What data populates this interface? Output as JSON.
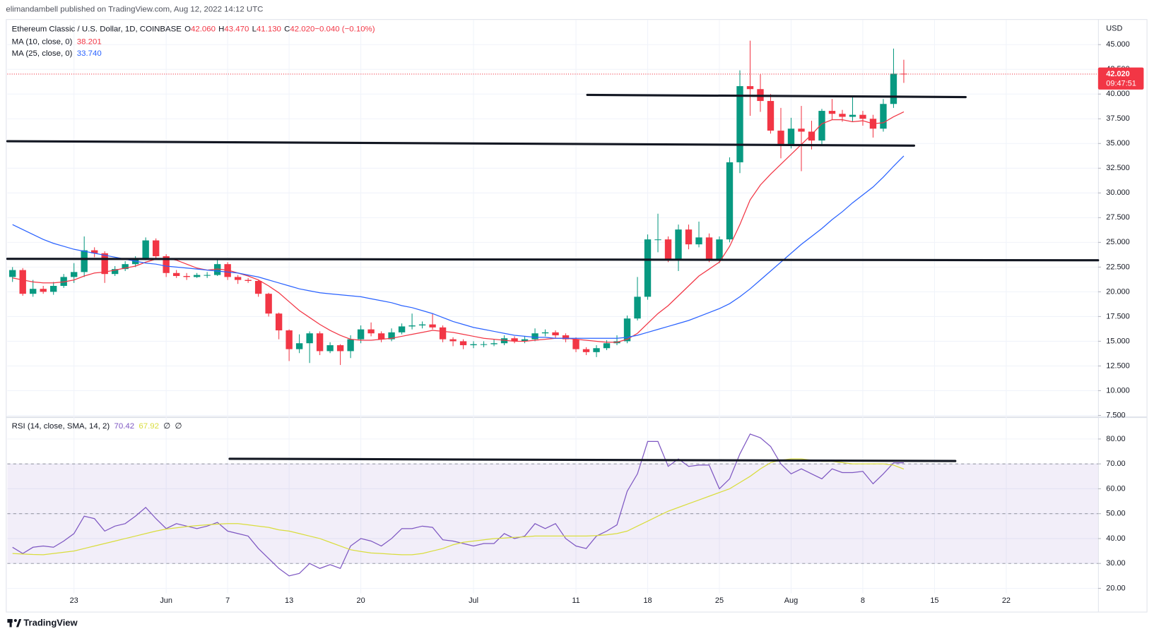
{
  "header": "elimandambell published on TradingView.com, Aug 12, 2022 14:12 UTC",
  "footer": "TradingView",
  "chart_data": [
    {
      "type": "candlestick",
      "title": "Ethereum Classic / U.S. Dollar, 1D, COINBASE",
      "ohlc_labels": [
        {
          "label": "O",
          "value": "42.060"
        },
        {
          "label": "H",
          "value": "43.470"
        },
        {
          "label": "L",
          "value": "41.130"
        },
        {
          "label": "C",
          "value": "42.020"
        },
        {
          "label": "",
          "value": "−0.040 (−0.10%)"
        }
      ],
      "currency": "USD",
      "last_price_label": "42.020",
      "countdown": "09:47:51",
      "up_color": "#089981",
      "down_color": "#f23645",
      "grid": true,
      "categories": [
        null,
        null,
        null,
        null,
        null,
        null,
        "23",
        null,
        null,
        null,
        null,
        null,
        null,
        null,
        null,
        "Jun",
        null,
        null,
        null,
        null,
        null,
        "7",
        null,
        null,
        null,
        null,
        null,
        "13",
        null,
        null,
        null,
        null,
        null,
        null,
        "20",
        null,
        null,
        null,
        null,
        null,
        null,
        null,
        null,
        null,
        null,
        "Jul",
        null,
        null,
        null,
        null,
        null,
        null,
        null,
        null,
        null,
        "11",
        null,
        null,
        null,
        null,
        null,
        null,
        "18",
        null,
        null,
        null,
        null,
        null,
        null,
        "25",
        null,
        null,
        null,
        null,
        null,
        null,
        "Aug",
        null,
        null,
        null,
        null,
        null,
        null,
        "8",
        null,
        null,
        null,
        null,
        null,
        null,
        "15",
        null,
        null,
        null,
        null,
        null,
        null,
        "22",
        null,
        null
      ],
      "open": [
        21.5,
        22.2,
        19.8,
        20.3,
        20.0,
        20.6,
        21.5,
        22.0,
        24.2,
        23.9,
        21.8,
        22.3,
        22.8,
        23.4,
        25.2,
        23.6,
        21.9,
        21.6,
        21.5,
        21.7,
        21.7,
        22.8,
        21.5,
        21.2,
        21.1,
        19.8,
        17.8,
        16.1,
        14.2,
        14.8,
        15.8,
        14.0,
        14.6,
        14.0,
        15.2,
        16.2,
        15.8,
        15.2,
        15.9,
        16.5,
        16.6,
        16.7,
        16.4,
        15.2,
        15.0,
        14.6,
        14.7,
        14.7,
        14.8,
        15.3,
        15.0,
        15.2,
        15.8,
        15.9,
        15.6,
        15.2,
        14.2,
        13.9,
        14.3,
        14.8,
        15.0,
        17.3,
        19.5,
        25.3,
        25.3,
        23.3,
        26.3,
        24.8,
        25.5,
        23.3,
        25.3,
        33.1,
        40.8,
        40.5,
        39.3,
        36.3,
        34.8,
        36.5,
        36.2,
        35.3,
        38.3,
        38.0,
        37.7,
        37.9,
        37.5,
        36.5,
        39.0,
        42.06,
        null,
        null,
        null,
        null,
        null,
        null,
        null,
        null,
        null,
        null,
        null,
        null
      ],
      "high": [
        22.5,
        22.4,
        21.2,
        20.6,
        21.0,
        21.8,
        22.9,
        25.6,
        24.5,
        24.1,
        22.6,
        23.1,
        23.6,
        25.5,
        25.4,
        23.8,
        22.2,
        21.9,
        21.9,
        22.0,
        23.4,
        23.0,
        21.7,
        21.4,
        21.2,
        19.9,
        17.9,
        16.2,
        15.7,
        16.0,
        16.0,
        14.9,
        14.7,
        15.6,
        16.6,
        16.9,
        16.0,
        16.3,
        16.8,
        17.8,
        17.0,
        17.8,
        16.6,
        15.4,
        15.2,
        15.0,
        15.0,
        15.2,
        15.6,
        15.5,
        15.5,
        16.3,
        16.2,
        16.1,
        15.8,
        15.4,
        14.4,
        14.6,
        15.1,
        15.6,
        17.6,
        21.5,
        25.8,
        27.9,
        25.6,
        26.8,
        26.8,
        27.1,
        25.9,
        25.6,
        33.6,
        42.4,
        45.4,
        42.0,
        40.0,
        38.6,
        37.6,
        38.8,
        37.3,
        38.5,
        39.5,
        38.4,
        39.8,
        38.3,
        37.9,
        39.5,
        44.6,
        43.47,
        null,
        null,
        null,
        null,
        null,
        null,
        null,
        null,
        null,
        null,
        null,
        null
      ],
      "low": [
        21.0,
        19.6,
        19.5,
        19.8,
        19.7,
        20.4,
        20.9,
        21.5,
        23.5,
        20.9,
        21.6,
        22.1,
        22.5,
        23.2,
        23.3,
        21.5,
        21.4,
        21.2,
        21.4,
        21.4,
        21.6,
        21.2,
        20.8,
        20.9,
        19.5,
        17.5,
        15.2,
        13.0,
        13.8,
        12.8,
        13.6,
        13.8,
        12.6,
        13.3,
        14.8,
        15.5,
        14.9,
        15.0,
        15.7,
        16.2,
        16.3,
        16.2,
        14.9,
        14.5,
        14.2,
        14.3,
        14.4,
        14.5,
        14.6,
        14.8,
        14.8,
        15.0,
        15.5,
        15.3,
        14.9,
        13.9,
        13.6,
        13.4,
        14.1,
        14.6,
        14.8,
        17.1,
        19.2,
        24.0,
        23.0,
        22.1,
        24.3,
        24.5,
        23.0,
        22.9,
        25.0,
        32.0,
        37.8,
        38.2,
        36.0,
        33.5,
        34.5,
        32.2,
        34.4,
        34.9,
        37.4,
        37.2,
        37.2,
        36.8,
        35.6,
        36.2,
        38.6,
        41.13,
        null,
        null,
        null,
        null,
        null,
        null,
        null,
        null,
        null,
        null,
        null,
        null
      ],
      "close": [
        22.2,
        19.8,
        20.3,
        20.0,
        20.6,
        21.5,
        22.0,
        24.2,
        23.9,
        21.8,
        22.3,
        22.8,
        23.4,
        25.2,
        23.6,
        21.9,
        21.6,
        21.5,
        21.7,
        21.7,
        22.8,
        21.5,
        21.2,
        21.1,
        19.8,
        17.8,
        16.1,
        14.2,
        14.8,
        15.8,
        14.0,
        14.6,
        14.0,
        15.2,
        16.2,
        15.8,
        15.2,
        15.9,
        16.5,
        16.6,
        16.7,
        16.4,
        15.2,
        15.0,
        14.6,
        14.7,
        14.7,
        14.8,
        15.3,
        15.0,
        15.2,
        15.8,
        15.9,
        15.6,
        15.2,
        14.2,
        13.9,
        14.3,
        14.8,
        15.0,
        17.3,
        19.5,
        25.3,
        25.3,
        23.3,
        26.3,
        24.8,
        25.5,
        23.3,
        25.3,
        33.1,
        40.8,
        40.5,
        39.3,
        36.3,
        34.8,
        36.5,
        36.2,
        35.3,
        38.3,
        38.0,
        37.7,
        37.9,
        37.5,
        36.5,
        39.0,
        42.06,
        42.02,
        null,
        null,
        null,
        null,
        null,
        null,
        null,
        null,
        null,
        null,
        null,
        null
      ],
      "series": [
        {
          "name": "MA (10, close, 0)",
          "color": "#f23645",
          "legend_value": "38.201",
          "values": [
            21.4,
            21.2,
            21.0,
            20.9,
            20.9,
            21.0,
            21.2,
            21.6,
            21.9,
            22.0,
            22.2,
            22.4,
            22.6,
            23.0,
            23.3,
            23.4,
            23.2,
            22.8,
            22.4,
            22.2,
            22.3,
            22.2,
            21.9,
            21.6,
            21.2,
            20.6,
            19.9,
            19.0,
            18.1,
            17.4,
            16.7,
            16.1,
            15.6,
            15.2,
            15.1,
            15.1,
            15.2,
            15.3,
            15.5,
            15.7,
            15.9,
            16.1,
            16.0,
            15.9,
            15.7,
            15.5,
            15.3,
            15.2,
            15.1,
            15.0,
            15.0,
            15.1,
            15.2,
            15.3,
            15.3,
            15.2,
            15.1,
            15.0,
            14.9,
            14.9,
            15.2,
            15.8,
            16.8,
            17.8,
            18.6,
            19.6,
            20.6,
            21.6,
            22.3,
            23.0,
            24.6,
            26.8,
            29.3,
            30.8,
            31.9,
            32.9,
            33.9,
            34.9,
            35.9,
            37.0,
            37.4,
            37.4,
            37.2,
            37.3,
            37.0,
            37.1,
            37.7,
            38.201,
            null,
            null,
            null,
            null,
            null,
            null,
            null,
            null,
            null,
            null,
            null,
            null
          ]
        },
        {
          "name": "MA (25, close, 0)",
          "color": "#2962ff",
          "legend_value": "33.740",
          "values": [
            26.8,
            26.3,
            25.8,
            25.3,
            24.9,
            24.6,
            24.3,
            24.1,
            23.9,
            23.7,
            23.5,
            23.3,
            23.1,
            22.9,
            22.8,
            22.6,
            22.5,
            22.4,
            22.3,
            22.2,
            22.1,
            22.0,
            21.9,
            21.7,
            21.5,
            21.2,
            20.9,
            20.6,
            20.3,
            20.1,
            19.9,
            19.8,
            19.7,
            19.6,
            19.5,
            19.3,
            19.1,
            18.9,
            18.6,
            18.4,
            18.1,
            17.8,
            17.4,
            17.0,
            16.7,
            16.4,
            16.2,
            16.0,
            15.8,
            15.6,
            15.5,
            15.4,
            15.4,
            15.3,
            15.3,
            15.3,
            15.3,
            15.3,
            15.3,
            15.3,
            15.4,
            15.6,
            15.9,
            16.2,
            16.5,
            16.8,
            17.1,
            17.5,
            17.9,
            18.3,
            18.8,
            19.5,
            20.3,
            21.2,
            22.1,
            23.0,
            23.9,
            24.8,
            25.6,
            26.4,
            27.3,
            28.1,
            29.0,
            29.8,
            30.6,
            31.6,
            32.7,
            33.74,
            null,
            null,
            null,
            null,
            null,
            null,
            null,
            null,
            null,
            null,
            null,
            null
          ]
        }
      ],
      "ylim": [
        7.5,
        47.5
      ],
      "yticks": [
        {
          "value": 7.5,
          "label": "7.500"
        },
        {
          "value": 10,
          "label": "10.000"
        },
        {
          "value": 12.5,
          "label": "12.500"
        },
        {
          "value": 15,
          "label": "15.000"
        },
        {
          "value": 17.5,
          "label": "17.500"
        },
        {
          "value": 20,
          "label": "20.000"
        },
        {
          "value": 22.5,
          "label": "22.500"
        },
        {
          "value": 25,
          "label": "25.000"
        },
        {
          "value": 27.5,
          "label": "27.500"
        },
        {
          "value": 30,
          "label": "30.000"
        },
        {
          "value": 32.5,
          "label": "32.500"
        },
        {
          "value": 35,
          "label": "35.000"
        },
        {
          "value": 37.5,
          "label": "37.500"
        },
        {
          "value": 40,
          "label": "40.000"
        },
        {
          "value": 42.5,
          "label": "42.500"
        },
        {
          "value": 45,
          "label": "45.000"
        }
      ]
    },
    {
      "type": "line",
      "title": "RSI (14, close, SMA, 14, 2)",
      "extra_labels": [
        "∅",
        "∅"
      ],
      "band": [
        30,
        70
      ],
      "midline": 50,
      "band_color": "#7e57c2",
      "grid": true,
      "series": [
        {
          "color": "#7e57c2",
          "legend_value": "70.42",
          "values": [
            36.5,
            34,
            36.5,
            37,
            36.5,
            39,
            42,
            49,
            48,
            43,
            45,
            46,
            49,
            52.5,
            48,
            44,
            46,
            45,
            44,
            45,
            46.5,
            43,
            42,
            41,
            36,
            32,
            28,
            25,
            26,
            30,
            28,
            29.5,
            28,
            37,
            40,
            39,
            37,
            40,
            44,
            44,
            45,
            44.5,
            39.5,
            39,
            38,
            37,
            38,
            38,
            42,
            40,
            41,
            46,
            44,
            46,
            40,
            37,
            36,
            41,
            43,
            45.5,
            59,
            66,
            79,
            79,
            69,
            72,
            69,
            69.5,
            69.5,
            60,
            64,
            74,
            82,
            80.5,
            77,
            70,
            66,
            68,
            66,
            64,
            68,
            66.5,
            66.5,
            67,
            62,
            66,
            70.4,
            70.42,
            null,
            null,
            null,
            null,
            null,
            null,
            null,
            null,
            null,
            null,
            null,
            null
          ]
        },
        {
          "color": "#d9dd3d",
          "legend_value": "67.92",
          "values": [
            34,
            33.8,
            33.6,
            33.5,
            34,
            34.5,
            35,
            36,
            37,
            38,
            39,
            40,
            41,
            42,
            43,
            43.8,
            44.3,
            44.8,
            45.2,
            45.5,
            45.8,
            46,
            46,
            45.5,
            45,
            44.5,
            43.5,
            43,
            42,
            41,
            40,
            38.5,
            37,
            35.5,
            34.8,
            34.2,
            34,
            33.7,
            33.5,
            33.5,
            34,
            35,
            36,
            37.5,
            38.5,
            39,
            39.5,
            40,
            40.2,
            40.5,
            40.7,
            41,
            41,
            41,
            41,
            41,
            41,
            41.2,
            41.5,
            42,
            43,
            45,
            47,
            49,
            51,
            52.5,
            54,
            55.5,
            57,
            58.5,
            60,
            62.5,
            65,
            68,
            70.5,
            71.5,
            72,
            72,
            71.5,
            71,
            71,
            70.5,
            70,
            70,
            70,
            70,
            69.5,
            67.92,
            null,
            null,
            null,
            null,
            null,
            null,
            null,
            null,
            null,
            null,
            null,
            null
          ]
        }
      ],
      "ylim": [
        18,
        88
      ],
      "yticks": [
        {
          "value": 20,
          "label": "20.00"
        },
        {
          "value": 30,
          "label": "30.00"
        },
        {
          "value": 40,
          "label": "40.00"
        },
        {
          "value": 50,
          "label": "50.00"
        },
        {
          "value": 60,
          "label": "60.00"
        },
        {
          "value": 70,
          "label": "70.00"
        },
        {
          "value": 80,
          "label": "80.00"
        }
      ]
    }
  ]
}
